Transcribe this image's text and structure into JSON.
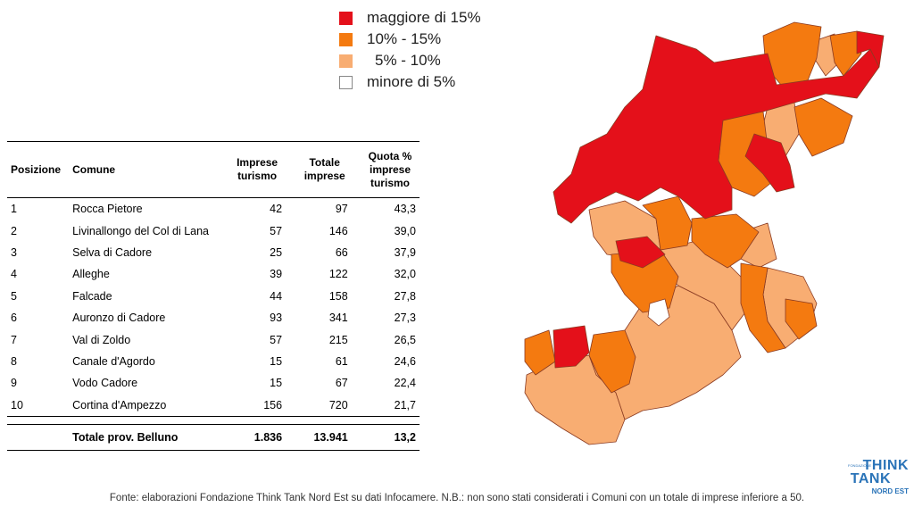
{
  "legend": {
    "items": [
      {
        "label": "maggiore di 15%",
        "color": "#e4101a"
      },
      {
        "label": "10% - 15%",
        "color": "#f47a10"
      },
      {
        "label": "5% - 10%",
        "color": "#f8ad72"
      },
      {
        "label": "minore di 5%",
        "color": "#ffffff"
      }
    ]
  },
  "table": {
    "headers": {
      "posizione": "Posizione",
      "comune": "Comune",
      "imprese": "Imprese turismo",
      "totale": "Totale imprese",
      "quota": "Quota % imprese turismo"
    },
    "footer": {
      "label": "Totale prov. Belluno",
      "imprese": "1.836",
      "totale": "13.941",
      "quota": "13,2"
    }
  },
  "chart_data": {
    "type": "table",
    "columns": [
      "Posizione",
      "Comune",
      "Imprese turismo",
      "Totale imprese",
      "Quota % imprese turismo"
    ],
    "rows": [
      {
        "pos": "1",
        "comune": "Rocca Pietore",
        "imprese": "42",
        "totale": "97",
        "quota": "43,3"
      },
      {
        "pos": "2",
        "comune": "Livinallongo del Col di Lana",
        "imprese": "57",
        "totale": "146",
        "quota": "39,0"
      },
      {
        "pos": "3",
        "comune": "Selva di Cadore",
        "imprese": "25",
        "totale": "66",
        "quota": "37,9"
      },
      {
        "pos": "4",
        "comune": "Alleghe",
        "imprese": "39",
        "totale": "122",
        "quota": "32,0"
      },
      {
        "pos": "5",
        "comune": "Falcade",
        "imprese": "44",
        "totale": "158",
        "quota": "27,8"
      },
      {
        "pos": "6",
        "comune": "Auronzo di Cadore",
        "imprese": "93",
        "totale": "341",
        "quota": "27,3"
      },
      {
        "pos": "7",
        "comune": "Val di Zoldo",
        "imprese": "57",
        "totale": "215",
        "quota": "26,5"
      },
      {
        "pos": "8",
        "comune": "Canale d'Agordo",
        "imprese": "15",
        "totale": "61",
        "quota": "24,6"
      },
      {
        "pos": "9",
        "comune": "Vodo Cadore",
        "imprese": "15",
        "totale": "67",
        "quota": "22,4"
      },
      {
        "pos": "10",
        "comune": "Cortina d'Ampezzo",
        "imprese": "156",
        "totale": "720",
        "quota": "21,7"
      }
    ],
    "map_classes": [
      "maggiore di 15%",
      "10% - 15%",
      "5% - 10%",
      "minore di 5%"
    ]
  },
  "footer": {
    "source": "Fonte: elaborazioni Fondazione Think Tank Nord Est su dati Infocamere. N.B.: non sono stati considerati i Comuni con un totale di imprese inferiore a 50."
  },
  "logo": {
    "think": "THINK",
    "tank": "TANK",
    "nordest": "NORD EST",
    "fondazione": "FONDAZIONE",
    "color": "#2b74b8"
  }
}
